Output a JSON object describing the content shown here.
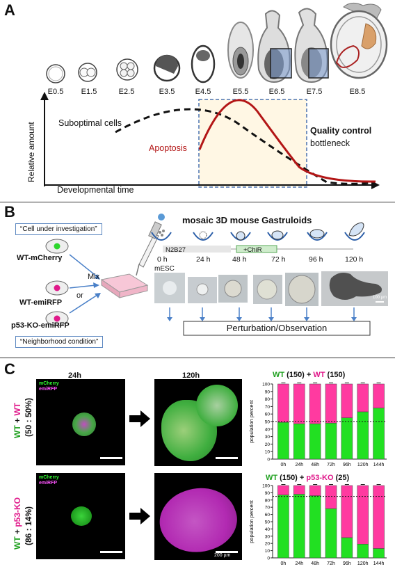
{
  "panelA": {
    "label": "A",
    "stages": [
      "E0.5",
      "E1.5",
      "E2.5",
      "E3.5",
      "E4.5",
      "E5.5",
      "E6.5",
      "E7.5",
      "E8.5"
    ],
    "suboptimal": "Suboptimal cells",
    "apoptosis": "Apoptosis",
    "qc_title": "Quality control",
    "qc_sub": "bottleneck",
    "ylabel": "Relative amount",
    "xlabel": "Developmental time"
  },
  "panelB": {
    "label": "B",
    "title": "mosaic 3D mouse Gastruloids",
    "cell_under": "“Cell under investigation”",
    "neighborhood": "“Neighborhood condition”",
    "wt_mcherry": "WT-mCherry",
    "wt_emirfp": "WT-emiRFP",
    "p53ko": "p53-KO-emiRFP",
    "or": "or",
    "mix": "Mix",
    "n2b27": "N2B27",
    "chir": "+ChiR",
    "times": [
      "0 h",
      "24 h",
      "48 h",
      "72 h",
      "96 h",
      "120 h"
    ],
    "mesc": "mESC",
    "scale": "100 µm",
    "perturb": "Perturbation/Observation"
  },
  "panelC": {
    "label": "C",
    "col24": "24h",
    "col120": "120h",
    "ch1": "mCherry",
    "ch2": "emiRFP",
    "row1_wt": "WT",
    "row1_plus": " + ",
    "row1_ko": "WT",
    "row1_ratio": "(50 : 50%)",
    "row2_wt": "WT",
    "row2_plus": " + ",
    "row2_ko": "p53-KO",
    "row2_ratio": "(86 : 14%)",
    "scalebar": "200 µm",
    "colors": {
      "green": "#22e022",
      "magenta": "#ff3aa0",
      "wt_text": "#1fa01f",
      "ko_text": "#e0188a"
    }
  },
  "chart_data": [
    {
      "type": "bar",
      "title_parts": [
        "WT",
        " (150) + ",
        "WT",
        " (150)"
      ],
      "ylabel": "population percent",
      "categories": [
        "0h",
        "24h",
        "48h",
        "72h",
        "96h",
        "120h",
        "144h"
      ],
      "ylim": [
        0,
        100
      ],
      "yticks": [
        0,
        10,
        20,
        30,
        40,
        50,
        60,
        70,
        80,
        90,
        100
      ],
      "dashed_line": 50,
      "series": [
        {
          "name": "WT",
          "values": [
            49,
            47,
            47,
            48,
            55,
            63,
            68
          ]
        },
        {
          "name": "WT",
          "values": [
            51,
            53,
            53,
            52,
            45,
            37,
            32
          ]
        }
      ]
    },
    {
      "type": "bar",
      "title_parts": [
        "WT",
        " (150) + ",
        "p53-KO",
        " (25)"
      ],
      "ylabel": "population percent",
      "categories": [
        "0h",
        "24h",
        "48h",
        "72h",
        "96h",
        "120h",
        "144h"
      ],
      "ylim": [
        0,
        100
      ],
      "yticks": [
        0,
        10,
        20,
        30,
        40,
        50,
        60,
        70,
        80,
        90,
        100
      ],
      "dashed_line": 85,
      "series": [
        {
          "name": "WT",
          "values": [
            87,
            88,
            86,
            68,
            28,
            19,
            13
          ]
        },
        {
          "name": "p53-KO",
          "values": [
            13,
            12,
            14,
            32,
            72,
            81,
            87
          ]
        }
      ]
    }
  ]
}
